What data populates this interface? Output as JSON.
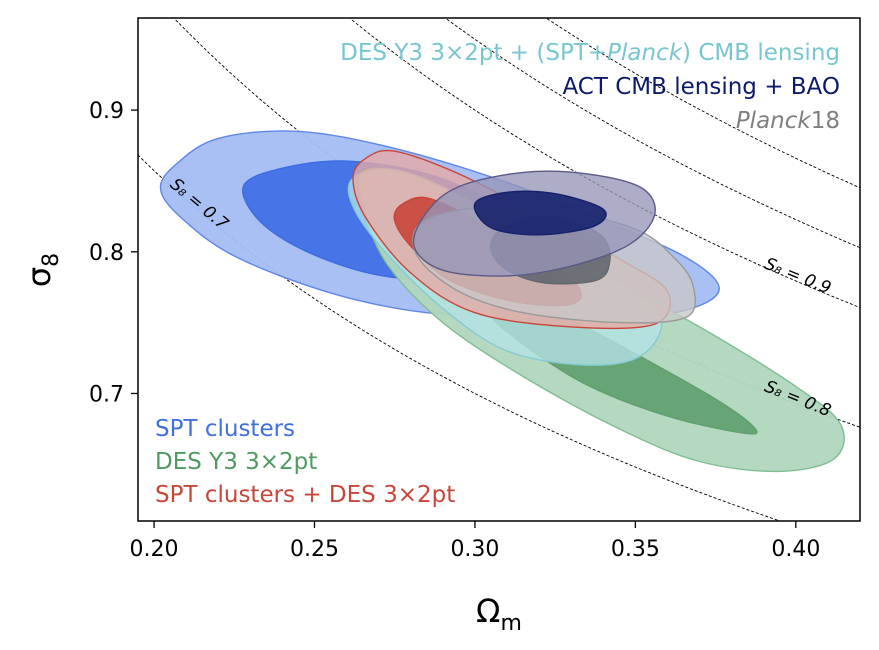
{
  "chart_data": {
    "type": "contour",
    "xlabel": "Ω",
    "xlabel_sub": "m",
    "ylabel": "σ",
    "ylabel_sub": "8",
    "xlim": [
      0.195,
      0.42
    ],
    "ylim": [
      0.61,
      0.965
    ],
    "xticks": [
      0.2,
      0.25,
      0.3,
      0.35,
      0.4
    ],
    "xtick_labels": [
      "0.20",
      "0.25",
      "0.30",
      "0.35",
      "0.40"
    ],
    "yticks": [
      0.7,
      0.8,
      0.9
    ],
    "ytick_labels": [
      "0.7",
      "0.8",
      "0.9"
    ],
    "s8_lines": [
      {
        "s8": 0.7,
        "label": "S₈ = 0.7",
        "show_label": true
      },
      {
        "s8": 0.8,
        "label": "S₈ = 0.8",
        "show_label": true
      },
      {
        "s8": 0.9,
        "label": "S₈ = 0.9",
        "show_label": true
      },
      {
        "s8": 0.95,
        "label": "",
        "show_label": false
      },
      {
        "s8": 1.0,
        "label": "",
        "show_label": false
      }
    ],
    "s8_label_positions": [
      {
        "s8": 0.7,
        "x": 0.213,
        "rot": 40
      },
      {
        "s8": 0.8,
        "x": 0.4,
        "rot": 22
      },
      {
        "s8": 0.9,
        "x": 0.4,
        "rot": 22
      }
    ],
    "series": [
      {
        "name": "SPT clusters",
        "color": "#3f6fe0",
        "contours": [
          {
            "level": "95%",
            "fill": "#a3bdf2",
            "stroke": "#5f86e8",
            "points": [
              [
                0.207,
                0.862
              ],
              [
                0.22,
                0.88
              ],
              [
                0.245,
                0.885
              ],
              [
                0.275,
                0.873
              ],
              [
                0.31,
                0.849
              ],
              [
                0.34,
                0.822
              ],
              [
                0.365,
                0.797
              ],
              [
                0.376,
                0.776
              ],
              [
                0.37,
                0.762
              ],
              [
                0.352,
                0.754
              ],
              [
                0.32,
                0.754
              ],
              [
                0.285,
                0.757
              ],
              [
                0.255,
                0.771
              ],
              [
                0.225,
                0.797
              ],
              [
                0.208,
                0.825
              ],
              [
                0.202,
                0.845
              ]
            ]
          },
          {
            "level": "68%",
            "fill": "#3c6ce4",
            "stroke": "#3c6ce4",
            "points": [
              [
                0.228,
                0.847
              ],
              [
                0.24,
                0.859
              ],
              [
                0.26,
                0.864
              ],
              [
                0.285,
                0.855
              ],
              [
                0.305,
                0.836
              ],
              [
                0.318,
                0.814
              ],
              [
                0.318,
                0.795
              ],
              [
                0.305,
                0.783
              ],
              [
                0.285,
                0.78
              ],
              [
                0.265,
                0.786
              ],
              [
                0.245,
                0.803
              ],
              [
                0.232,
                0.824
              ]
            ]
          }
        ]
      },
      {
        "name": "DES Y3 3×2pt",
        "color": "#4f9a62",
        "contours": [
          {
            "level": "95%",
            "fill": "#b0d7bd",
            "stroke": "#7fbd92",
            "points": [
              [
                0.265,
                0.856
              ],
              [
                0.28,
                0.855
              ],
              [
                0.3,
                0.834
              ],
              [
                0.33,
                0.797
              ],
              [
                0.37,
                0.747
              ],
              [
                0.4,
                0.705
              ],
              [
                0.414,
                0.678
              ],
              [
                0.412,
                0.654
              ],
              [
                0.395,
                0.645
              ],
              [
                0.37,
                0.652
              ],
              [
                0.345,
                0.675
              ],
              [
                0.315,
                0.712
              ],
              [
                0.29,
                0.75
              ],
              [
                0.273,
                0.79
              ],
              [
                0.266,
                0.826
              ]
            ]
          },
          {
            "level": "68%",
            "fill": "#5f9e6e",
            "stroke": "#5f9e6e",
            "points": [
              [
                0.315,
                0.77
              ],
              [
                0.33,
                0.752
              ],
              [
                0.35,
                0.728
              ],
              [
                0.375,
                0.696
              ],
              [
                0.387,
                0.676
              ],
              [
                0.384,
                0.672
              ],
              [
                0.36,
                0.684
              ],
              [
                0.335,
                0.706
              ],
              [
                0.315,
                0.735
              ],
              [
                0.305,
                0.757
              ]
            ]
          }
        ]
      },
      {
        "name": "DES Y3 3×2pt + (SPT+Planck) CMB lensing",
        "color": "#78c6cf",
        "contours": [
          {
            "level": "95%",
            "fill": "#b4e1e6",
            "stroke": "#86cbd3",
            "points": [
              [
                0.262,
                0.852
              ],
              [
                0.275,
                0.858
              ],
              [
                0.295,
                0.84
              ],
              [
                0.32,
                0.808
              ],
              [
                0.345,
                0.778
              ],
              [
                0.358,
                0.753
              ],
              [
                0.352,
                0.727
              ],
              [
                0.335,
                0.72
              ],
              [
                0.31,
                0.73
              ],
              [
                0.29,
                0.76
              ],
              [
                0.272,
                0.8
              ],
              [
                0.262,
                0.832
              ]
            ]
          }
        ]
      },
      {
        "name": "SPT clusters + DES 3×2pt",
        "color": "#c8453a",
        "contours": [
          {
            "level": "95%",
            "fill": "#e7a9a4",
            "stroke": "#c8453a",
            "points": [
              [
                0.266,
                0.866
              ],
              [
                0.275,
                0.871
              ],
              [
                0.295,
                0.855
              ],
              [
                0.32,
                0.826
              ],
              [
                0.345,
                0.795
              ],
              [
                0.36,
                0.772
              ],
              [
                0.356,
                0.749
              ],
              [
                0.33,
                0.747
              ],
              [
                0.3,
                0.757
              ],
              [
                0.28,
                0.785
              ],
              [
                0.266,
                0.824
              ],
              [
                0.262,
                0.852
              ]
            ]
          },
          {
            "level": "68%",
            "fill": "#c9453b",
            "stroke": "#c9453b",
            "points": [
              [
                0.277,
                0.833
              ],
              [
                0.285,
                0.838
              ],
              [
                0.3,
                0.823
              ],
              [
                0.318,
                0.801
              ],
              [
                0.332,
                0.776
              ],
              [
                0.33,
                0.763
              ],
              [
                0.312,
                0.765
              ],
              [
                0.292,
                0.78
              ],
              [
                0.28,
                0.804
              ],
              [
                0.275,
                0.822
              ]
            ]
          }
        ]
      },
      {
        "name": "Planck18",
        "color": "#7f7f7f",
        "contours": [
          {
            "level": "95%",
            "fill": "#c8c8c8",
            "stroke": "#9a9a9a",
            "points": [
              [
                0.283,
                0.82
              ],
              [
                0.3,
                0.831
              ],
              [
                0.325,
                0.83
              ],
              [
                0.35,
                0.816
              ],
              [
                0.362,
                0.796
              ],
              [
                0.368,
                0.776
              ],
              [
                0.366,
                0.754
              ],
              [
                0.345,
                0.75
              ],
              [
                0.315,
                0.757
              ],
              [
                0.295,
                0.772
              ],
              [
                0.282,
                0.797
              ]
            ]
          },
          {
            "level": "68%",
            "fill": "#63676f",
            "stroke": "#63676f",
            "points": [
              [
                0.308,
                0.816
              ],
              [
                0.318,
                0.825
              ],
              [
                0.33,
                0.822
              ],
              [
                0.34,
                0.81
              ],
              [
                0.342,
                0.793
              ],
              [
                0.338,
                0.78
              ],
              [
                0.322,
                0.778
              ],
              [
                0.31,
                0.787
              ],
              [
                0.305,
                0.802
              ]
            ]
          }
        ]
      },
      {
        "name": "ACT CMB lensing + BAO",
        "color": "#0d1a6b",
        "contours": [
          {
            "level": "95%",
            "fill": "#9696b8",
            "stroke": "#5a5a88",
            "points": [
              [
                0.285,
                0.828
              ],
              [
                0.295,
                0.846
              ],
              [
                0.315,
                0.856
              ],
              [
                0.335,
                0.855
              ],
              [
                0.352,
                0.845
              ],
              [
                0.356,
                0.826
              ],
              [
                0.348,
                0.805
              ],
              [
                0.33,
                0.79
              ],
              [
                0.31,
                0.783
              ],
              [
                0.29,
                0.787
              ],
              [
                0.281,
                0.804
              ]
            ]
          },
          {
            "level": "68%",
            "fill": "#16216b",
            "stroke": "#16216b",
            "points": [
              [
                0.3,
                0.834
              ],
              [
                0.31,
                0.842
              ],
              [
                0.325,
                0.841
              ],
              [
                0.34,
                0.83
              ],
              [
                0.337,
                0.818
              ],
              [
                0.32,
                0.812
              ],
              [
                0.305,
                0.817
              ]
            ]
          }
        ]
      }
    ],
    "legend_top_right": [
      {
        "text": "DES Y3 3×2pt + (SPT+",
        "italic_part": "Planck",
        "text_after": ") CMB lensing",
        "color": "#78c6cf"
      },
      {
        "text": "ACT CMB lensing + BAO",
        "italic_part": "",
        "text_after": "",
        "color": "#0d1a6b"
      },
      {
        "text": "",
        "italic_part": "Planck",
        "text_after": "18",
        "color": "#7f7f7f"
      }
    ],
    "legend_bottom_left": [
      {
        "text": "SPT clusters",
        "color": "#3f6fe0"
      },
      {
        "text": "DES Y3 3×2pt",
        "color": "#4f9a62"
      },
      {
        "text": "SPT clusters + DES 3×2pt",
        "color": "#c8453a"
      }
    ]
  }
}
